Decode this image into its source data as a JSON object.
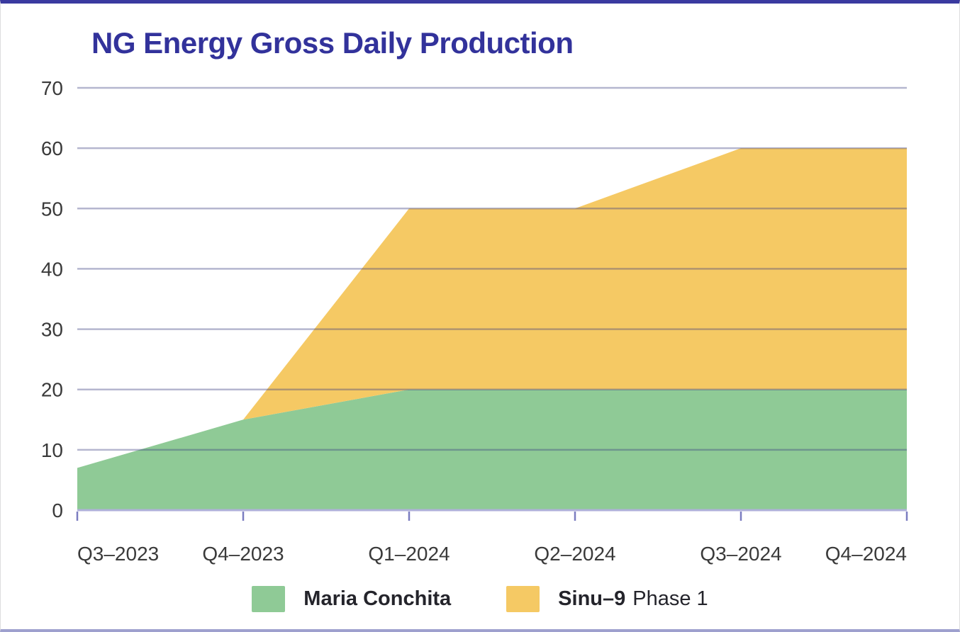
{
  "title": "NG Energy Gross Daily Production",
  "chart_data": {
    "type": "area",
    "stacked": true,
    "title": "NG Energy Gross Daily Production",
    "categories": [
      "Q3–2023",
      "Q4–2023",
      "Q1–2024",
      "Q2–2024",
      "Q3–2024",
      "Q4–2024"
    ],
    "series": [
      {
        "name": "Maria Conchita",
        "color": "#8FCA96",
        "values": [
          7,
          15,
          20,
          20,
          20,
          20
        ]
      },
      {
        "name": "Sinu–9 Phase 1",
        "color": "#F5C964",
        "values": [
          0,
          0,
          30,
          30,
          40,
          40
        ]
      }
    ],
    "stacked_totals": [
      7,
      15,
      50,
      50,
      60,
      60
    ],
    "ylim": [
      0,
      70
    ],
    "yticks": [
      0,
      10,
      20,
      30,
      40,
      50,
      60,
      70
    ],
    "xlabel": "",
    "ylabel": "",
    "grid": true,
    "legend_position": "bottom"
  },
  "legend": [
    {
      "label_bold": "Maria Conchita",
      "label_regular": "",
      "color": "#8FCA96"
    },
    {
      "label_bold": "Sinu–9",
      "label_regular": "Phase 1",
      "color": "#F5C964"
    }
  ],
  "colors": {
    "title": "#32329B",
    "axis_label": "#3A3A3A",
    "gridline": "rgba(60,62,130,0.38)",
    "zero_line": "#AFB1D9",
    "tick": "#7B7DC0",
    "card_top_border": "#3A3AA0",
    "card_bottom_border": "#9EA0CE",
    "legend_text": "#24242B"
  }
}
